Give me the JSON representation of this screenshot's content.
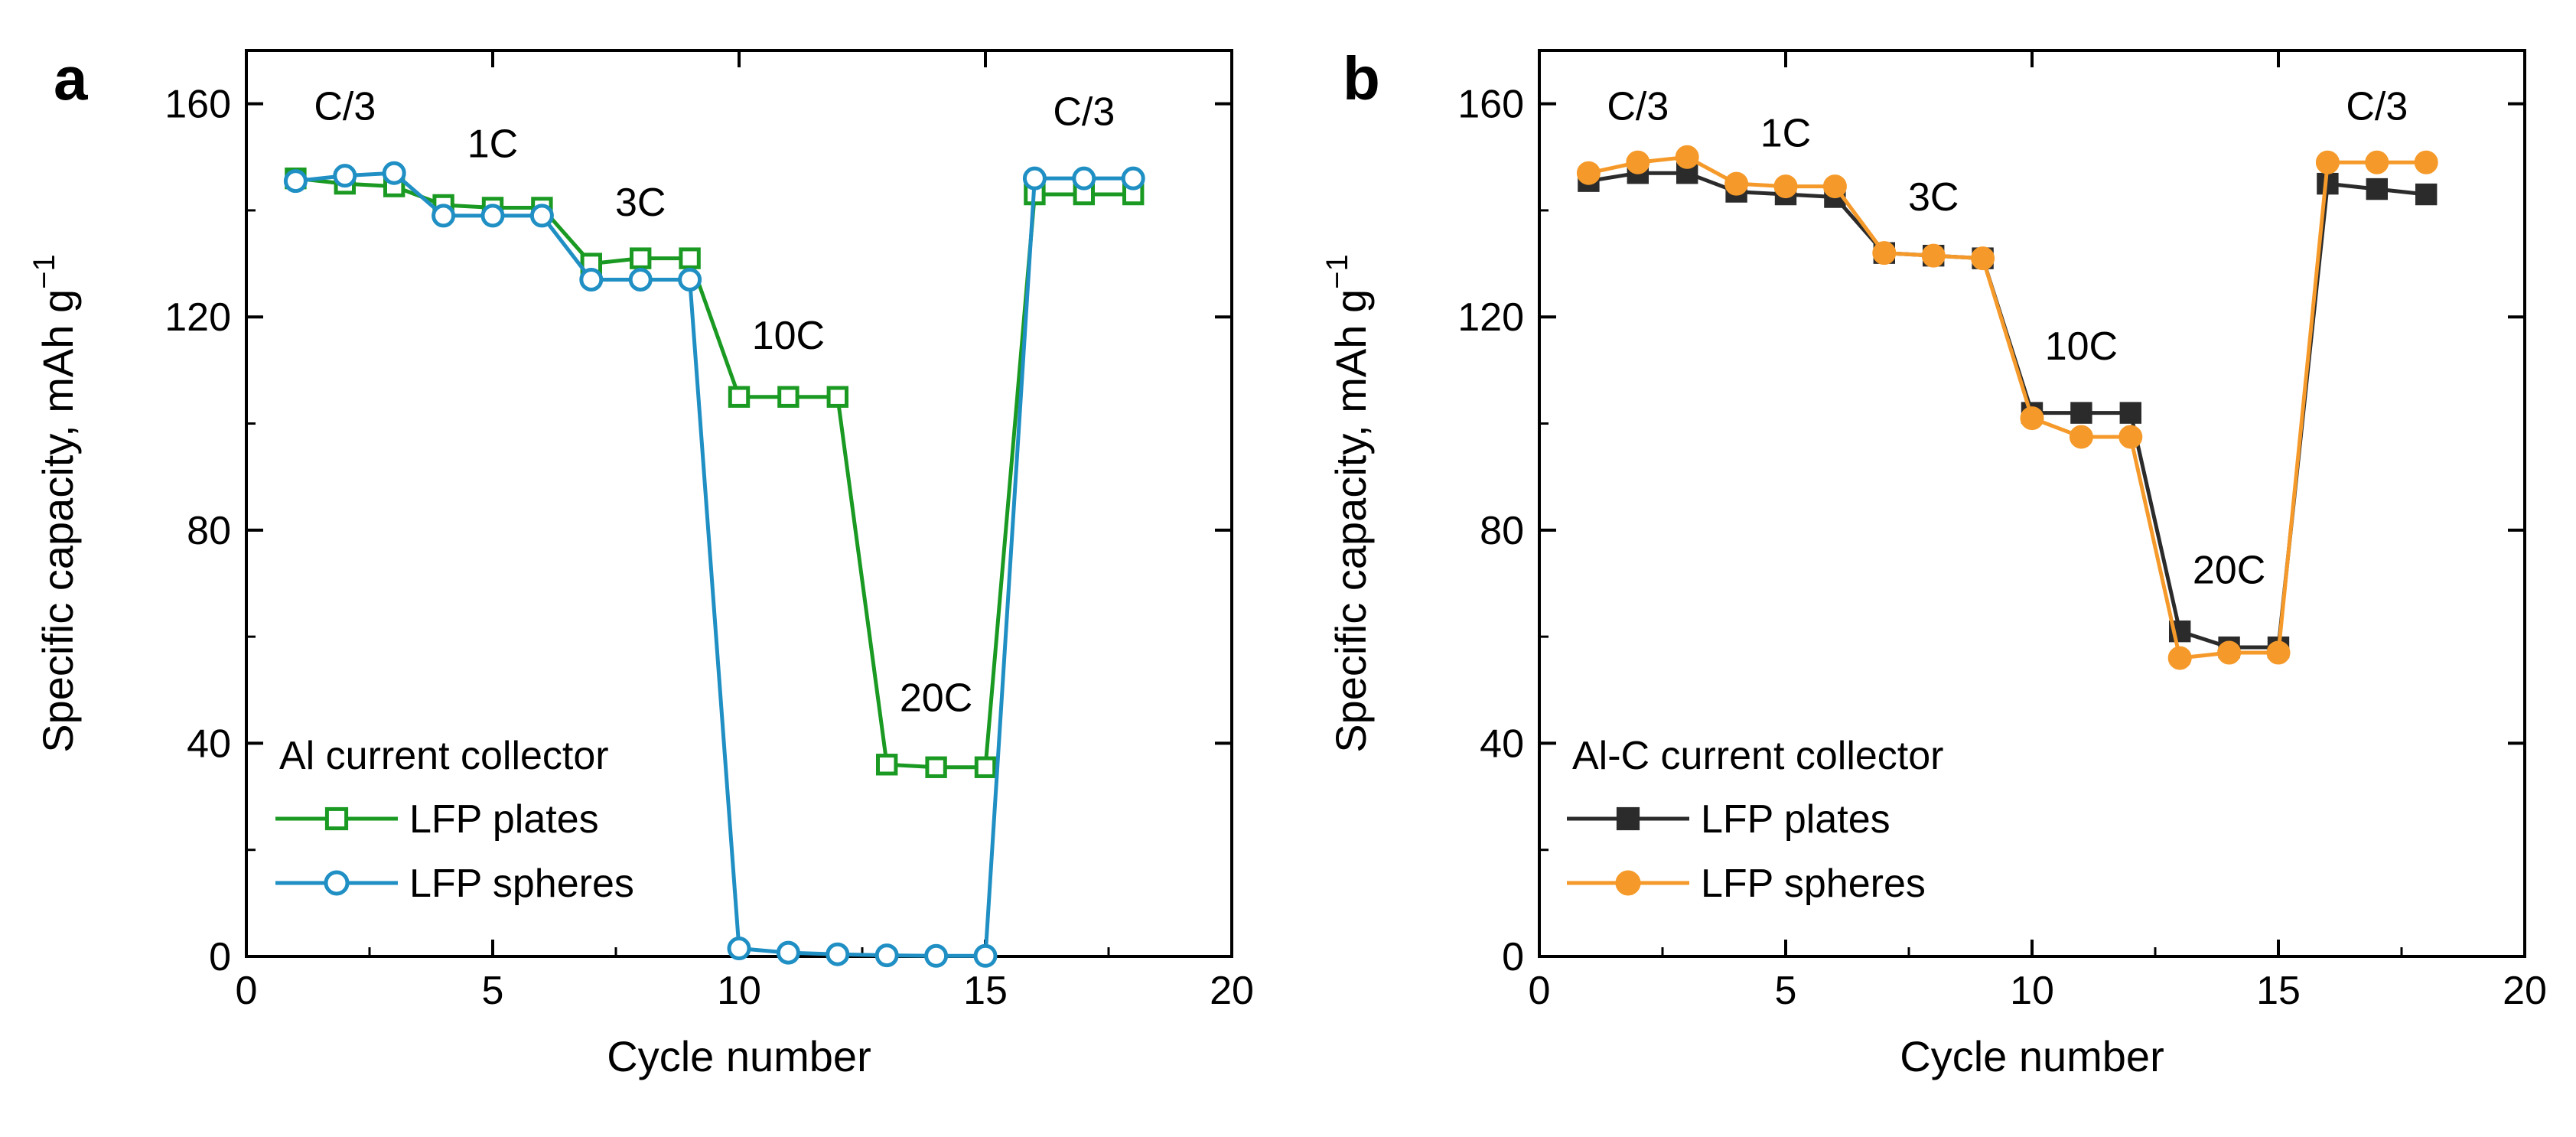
{
  "chart_data": [
    {
      "panel": "a",
      "type": "line",
      "xlabel": "Cycle number",
      "ylabel": "Specific capacity, mAh g",
      "ylabel_superscript": "−1",
      "xlim": [
        0,
        20
      ],
      "ylim": [
        0,
        170
      ],
      "xticks": [
        0,
        5,
        10,
        15,
        20
      ],
      "yticks": [
        0,
        40,
        80,
        120,
        160
      ],
      "legend_title": "Al current collector",
      "rate_labels": [
        {
          "text": "C/3",
          "x": 2,
          "y": 157
        },
        {
          "text": "1C",
          "x": 5,
          "y": 150
        },
        {
          "text": "3C",
          "x": 8,
          "y": 139
        },
        {
          "text": "10C",
          "x": 11,
          "y": 114
        },
        {
          "text": "20C",
          "x": 14,
          "y": 46
        },
        {
          "text": "C/3",
          "x": 17,
          "y": 156
        }
      ],
      "series": [
        {
          "name": "LFP plates",
          "color": "#1a9a22",
          "marker": "square-open",
          "x": [
            1,
            2,
            3,
            4,
            5,
            6,
            7,
            8,
            9,
            10,
            11,
            12,
            13,
            14,
            15,
            16,
            17,
            18
          ],
          "y": [
            146,
            145,
            144.5,
            141,
            140.5,
            140.5,
            130,
            131,
            131,
            105,
            105,
            105,
            36,
            35.5,
            35.5,
            143,
            143,
            143
          ]
        },
        {
          "name": "LFP spheres",
          "color": "#1f8fc4",
          "marker": "circle-open",
          "x": [
            1,
            2,
            3,
            4,
            5,
            6,
            7,
            8,
            9,
            10,
            11,
            12,
            13,
            14,
            15,
            16,
            17,
            18
          ],
          "y": [
            145.5,
            146.5,
            147,
            139,
            139,
            139,
            127,
            127,
            127,
            1.5,
            0.7,
            0.4,
            0.2,
            0.1,
            0.1,
            146,
            146,
            146
          ]
        }
      ]
    },
    {
      "panel": "b",
      "type": "line",
      "xlabel": "Cycle number",
      "ylabel": "Specific capacity, mAh g",
      "ylabel_superscript": "−1",
      "xlim": [
        0,
        20
      ],
      "ylim": [
        0,
        170
      ],
      "xticks": [
        0,
        5,
        10,
        15,
        20
      ],
      "yticks": [
        0,
        40,
        80,
        120,
        160
      ],
      "legend_title": "Al-C current collector",
      "rate_labels": [
        {
          "text": "C/3",
          "x": 2,
          "y": 157
        },
        {
          "text": "1C",
          "x": 5,
          "y": 152
        },
        {
          "text": "3C",
          "x": 8,
          "y": 140
        },
        {
          "text": "10C",
          "x": 11,
          "y": 112
        },
        {
          "text": "20C",
          "x": 14,
          "y": 70
        },
        {
          "text": "C/3",
          "x": 17,
          "y": 157
        }
      ],
      "series": [
        {
          "name": "LFP plates",
          "color": "#2b2b2b",
          "marker": "square-filled",
          "x": [
            1,
            2,
            3,
            4,
            5,
            6,
            7,
            8,
            9,
            10,
            11,
            12,
            13,
            14,
            15,
            16,
            17,
            18
          ],
          "y": [
            145.5,
            147,
            147,
            143.5,
            143,
            142.5,
            132,
            131.5,
            131,
            102,
            102,
            102,
            61,
            58,
            58,
            145,
            144,
            143
          ]
        },
        {
          "name": "LFP spheres",
          "color": "#f59a2a",
          "marker": "circle-filled",
          "x": [
            1,
            2,
            3,
            4,
            5,
            6,
            7,
            8,
            9,
            10,
            11,
            12,
            13,
            14,
            15,
            16,
            17,
            18
          ],
          "y": [
            147,
            149,
            150,
            145,
            144.5,
            144.5,
            132,
            131.5,
            131,
            101,
            97.5,
            97.5,
            56,
            57,
            57,
            149,
            149,
            149
          ]
        }
      ]
    }
  ]
}
